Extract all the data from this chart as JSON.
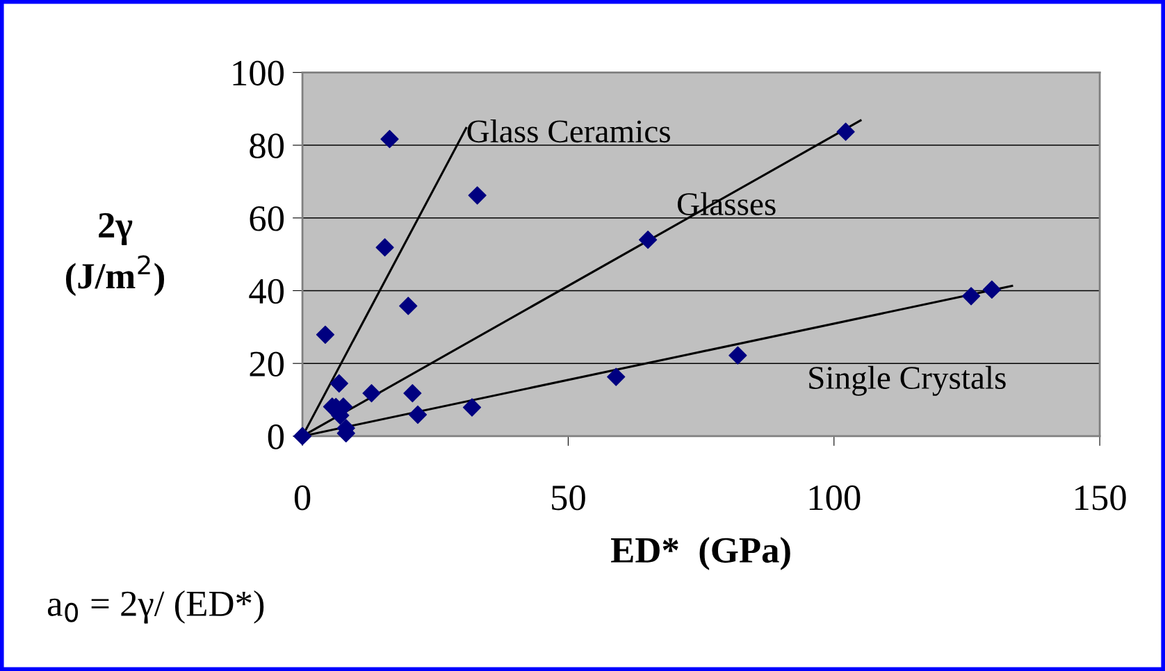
{
  "chart_data": {
    "type": "scatter",
    "xlabel": "ED*  (GPa)",
    "ylabel": "2γ\n(J/m$^{2}$)",
    "xlim": [
      0,
      150
    ],
    "xticks": [
      0,
      50,
      100,
      150
    ],
    "ylim": [
      0,
      100
    ],
    "yticks": [
      0,
      20,
      40,
      60,
      80,
      100
    ],
    "grid": "y",
    "marker": "diamond",
    "legend": false,
    "series": [
      {
        "color": "#000080",
        "x": [
          0,
          4.3,
          5.6,
          6.3,
          6.9,
          7.1,
          7.7,
          8.2,
          8.2,
          13,
          15.5,
          16.4,
          19.9,
          20.7,
          21.7,
          31.9,
          32.9,
          59,
          65,
          81.9,
          102.2,
          125.8,
          129.7
        ],
        "values": [
          0,
          27.9,
          8.1,
          8,
          14.5,
          5.7,
          8.1,
          2.2,
          0.8,
          11.8,
          51.9,
          81.7,
          35.8,
          11.8,
          5.9,
          7.9,
          66.2,
          16.3,
          54,
          22.2,
          83.7,
          38.5,
          40.3
        ]
      },
      {
        "type": "line",
        "color": "#000000",
        "marker": "none",
        "x": [
          0,
          30.8
        ],
        "values": [
          0,
          84.7
        ]
      },
      {
        "type": "line",
        "color": "#000000",
        "marker": "none",
        "x": [
          0,
          105
        ],
        "values": [
          0,
          86.8
        ]
      },
      {
        "type": "line",
        "color": "#000000",
        "marker": "none",
        "x": [
          0,
          133.5
        ],
        "values": [
          0,
          41.3
        ]
      }
    ],
    "annotations": [
      {
        "text": "Glass Ceramics",
        "x": 30.8,
        "y": 83
      },
      "Glasses",
      "Single Crystals",
      "a$_{0}$ = 2γ/ (ED*)"
    ]
  }
}
